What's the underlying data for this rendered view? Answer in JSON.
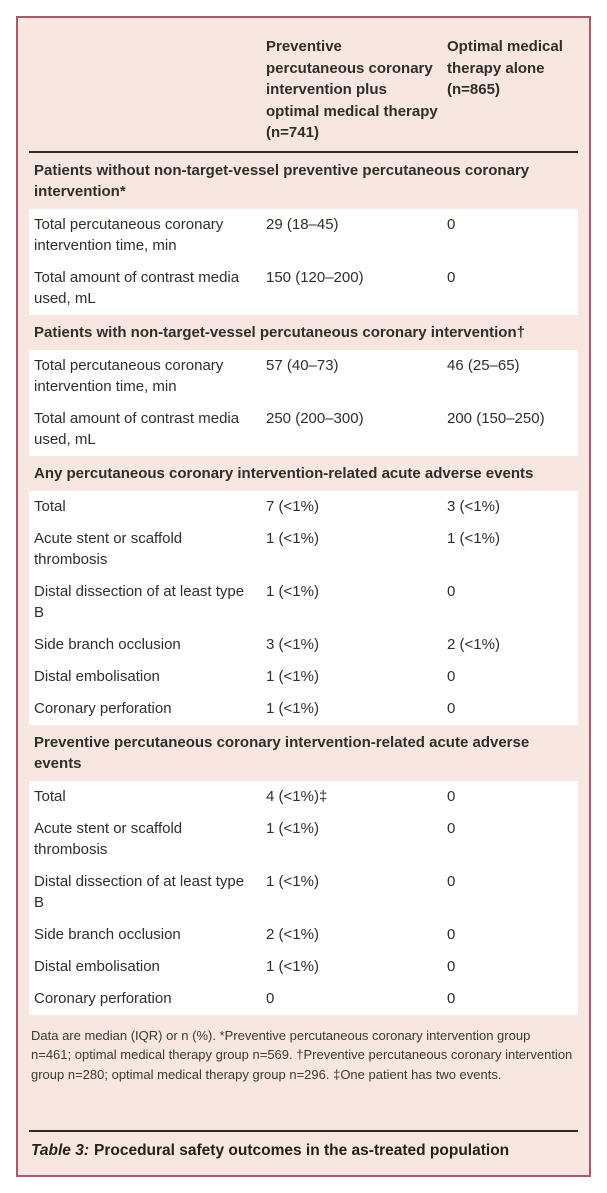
{
  "colors": {
    "card_border": "#b2566f",
    "card_background": "#f8e7e1",
    "row_background": "#ffffff",
    "rule": "#2d2c28",
    "text": "#2f2e29"
  },
  "table": {
    "col1_header": "",
    "col2_header": "Preventive percutaneous coronary intervention plus optimal medical therapy (n=741)",
    "col3_header": "Optimal medical therapy alone (n=865)",
    "sections": [
      {
        "header": "Patients without non-target-vessel preventive percutaneous coronary intervention*",
        "rows": [
          {
            "label": "Total percutaneous coronary intervention time, min",
            "values": [
              "29 (18–45)",
              "0"
            ]
          },
          {
            "label": "Total amount of contrast media used, mL",
            "values": [
              "150 (120–200)",
              "0"
            ]
          }
        ]
      },
      {
        "header": "Patients with non-target-vessel percutaneous coronary intervention†",
        "rows": [
          {
            "label": "Total percutaneous coronary intervention time, min",
            "values": [
              "57 (40–73)",
              "46 (25–65)"
            ]
          },
          {
            "label": "Total amount of contrast media used, mL",
            "values": [
              "250 (200–300)",
              "200 (150–250)"
            ]
          }
        ]
      },
      {
        "header": "Any percutaneous coronary intervention-related acute adverse events",
        "rows": [
          {
            "label": "Total",
            "values": [
              "7 (<1%)",
              "3 (<1%)"
            ]
          },
          {
            "label": "Acute stent or scaffold thrombosis",
            "values": [
              "1 (<1%)",
              "1 (<1%)"
            ]
          },
          {
            "label": "Distal dissection of at least type B",
            "values": [
              "1 (<1%)",
              "0"
            ]
          },
          {
            "label": "Side branch occlusion",
            "values": [
              "3 (<1%)",
              "2 (<1%)"
            ]
          },
          {
            "label": "Distal embolisation",
            "values": [
              "1 (<1%)",
              "0"
            ]
          },
          {
            "label": "Coronary perforation",
            "values": [
              "1 (<1%)",
              "0"
            ]
          }
        ]
      },
      {
        "header": "Preventive percutaneous coronary intervention-related acute adverse events",
        "rows": [
          {
            "label": "Total",
            "values": [
              "4 (<1%)‡",
              "0"
            ]
          },
          {
            "label": "Acute stent or scaffold thrombosis",
            "values": [
              "1 (<1%)",
              "0"
            ]
          },
          {
            "label": "Distal dissection of at least type B",
            "values": [
              "1 (<1%)",
              "0"
            ]
          },
          {
            "label": "Side branch occlusion",
            "values": [
              "2 (<1%)",
              "0"
            ]
          },
          {
            "label": "Distal embolisation",
            "values": [
              "1 (<1%)",
              "0"
            ]
          },
          {
            "label": "Coronary perforation",
            "values": [
              "0",
              "0"
            ]
          }
        ]
      }
    ],
    "footnote": "Data are median (IQR) or n (%). *Preventive percutaneous coronary intervention group n=461; optimal medical therapy group n=569. †Preventive percutaneous coronary intervention group n=280; optimal medical therapy group n=296. ‡One patient has two events.",
    "caption_label": "Table 3:",
    "caption_text": "Procedural safety outcomes in the as-treated population"
  }
}
